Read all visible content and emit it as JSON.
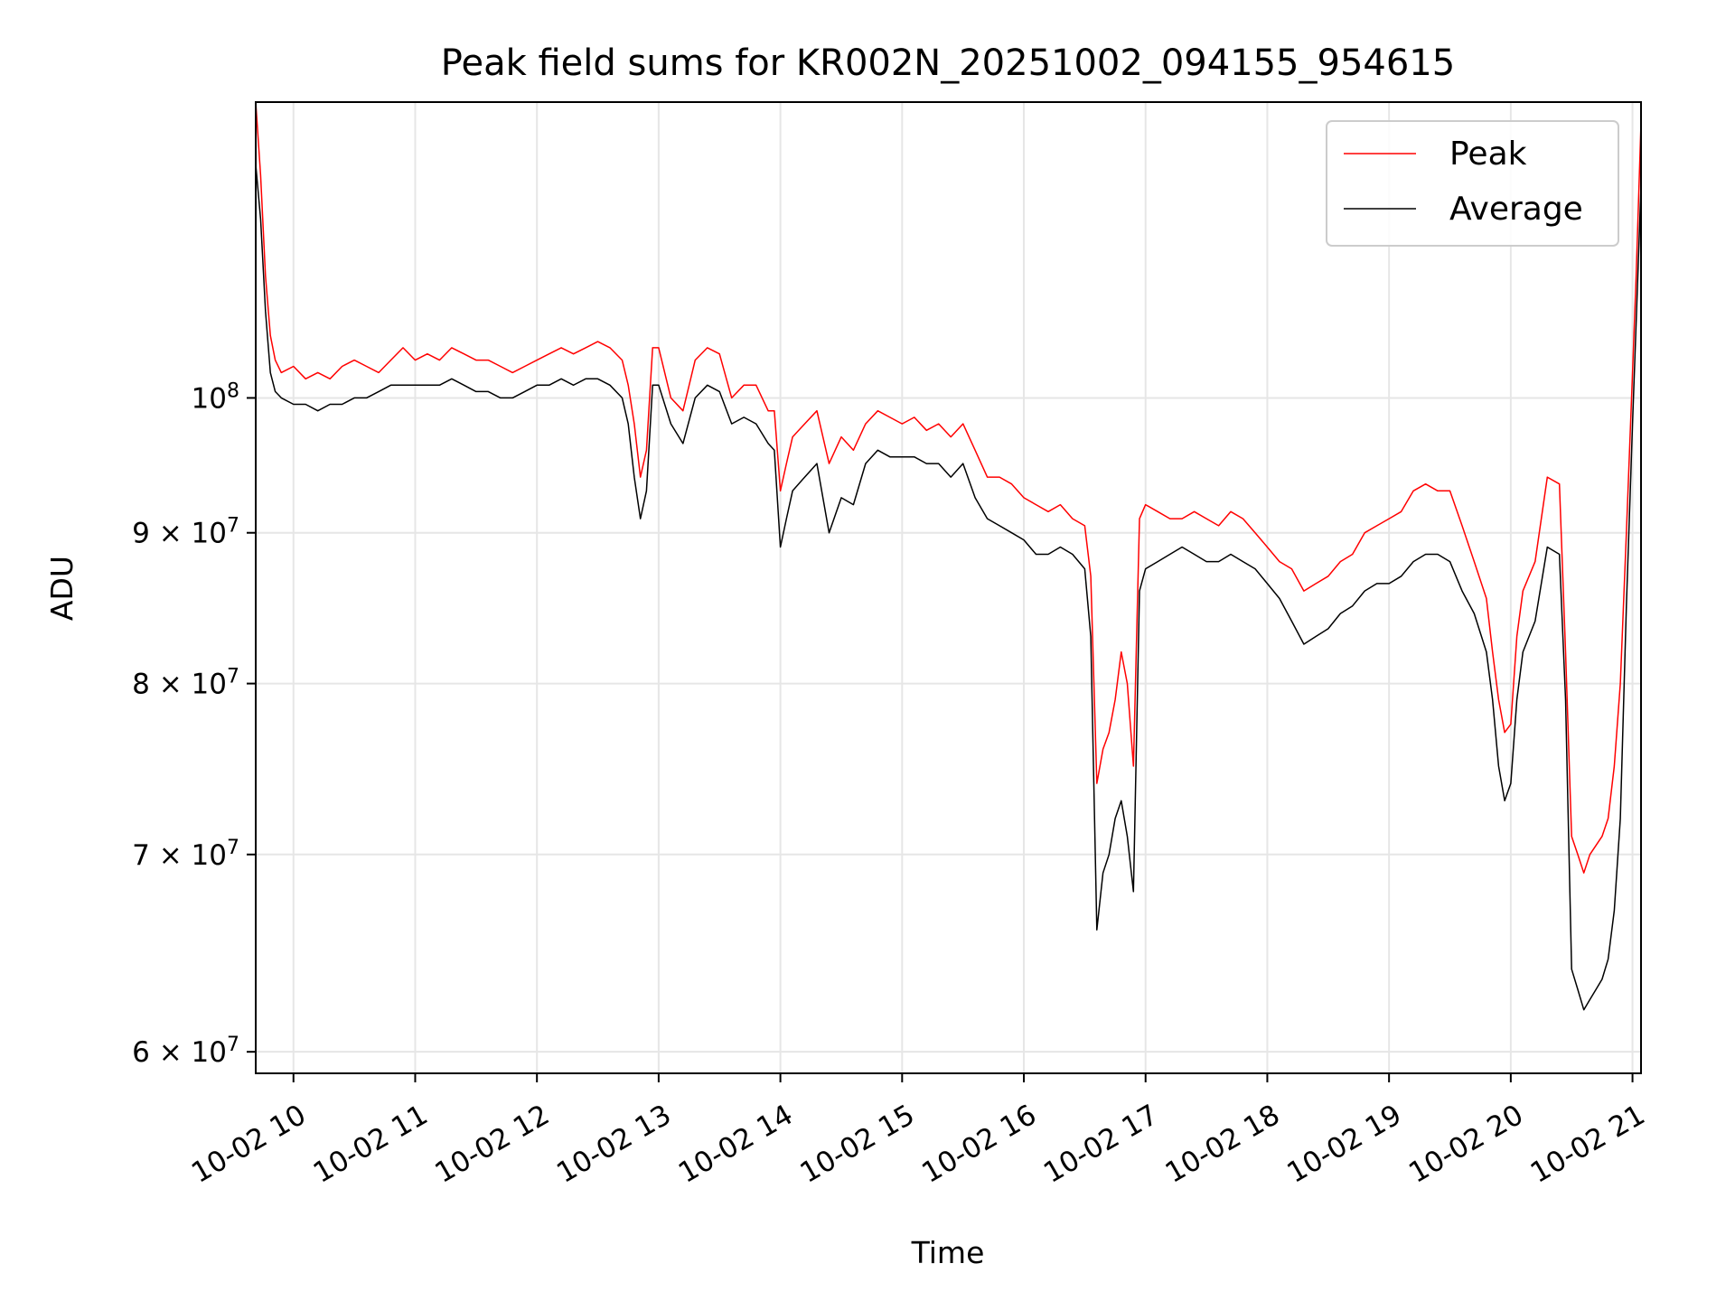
{
  "chart_data": {
    "type": "line",
    "title": "Peak field sums for KR002N_20251002_094155_954615",
    "xlabel": "Time",
    "ylabel": "ADU",
    "yscale": "log",
    "ylim": [
      59000000,
      126000000
    ],
    "x_range_hours": [
      9.69,
      21.07
    ],
    "grid": true,
    "legend_position": "top-right",
    "colors": {
      "Peak": "#ff0000",
      "Average": "#000000",
      "grid": "#e6e6e6"
    },
    "x_ticks": [
      {
        "hour": 10,
        "label": "10-02 10"
      },
      {
        "hour": 11,
        "label": "10-02 11"
      },
      {
        "hour": 12,
        "label": "10-02 12"
      },
      {
        "hour": 13,
        "label": "10-02 13"
      },
      {
        "hour": 14,
        "label": "10-02 14"
      },
      {
        "hour": 15,
        "label": "10-02 15"
      },
      {
        "hour": 16,
        "label": "10-02 16"
      },
      {
        "hour": 17,
        "label": "10-02 17"
      },
      {
        "hour": 18,
        "label": "10-02 18"
      },
      {
        "hour": 19,
        "label": "10-02 19"
      },
      {
        "hour": 20,
        "label": "10-02 20"
      },
      {
        "hour": 21,
        "label": "10-02 21"
      }
    ],
    "y_ticks": [
      {
        "value": 60000000,
        "mant": "6",
        "exp": "7"
      },
      {
        "value": 70000000,
        "mant": "7",
        "exp": "7"
      },
      {
        "value": 80000000,
        "mant": "8",
        "exp": "7"
      },
      {
        "value": 90000000,
        "mant": "9",
        "exp": "7"
      },
      {
        "value": 100000000,
        "mant": "",
        "exp": "8"
      }
    ],
    "series": [
      {
        "name": "Peak",
        "x_hours": [
          9.69,
          9.73,
          9.77,
          9.81,
          9.85,
          9.9,
          10.0,
          10.1,
          10.2,
          10.3,
          10.4,
          10.5,
          10.6,
          10.7,
          10.8,
          10.9,
          11.0,
          11.1,
          11.2,
          11.3,
          11.4,
          11.5,
          11.6,
          11.7,
          11.8,
          11.9,
          12.0,
          12.1,
          12.2,
          12.3,
          12.4,
          12.5,
          12.6,
          12.7,
          12.75,
          12.8,
          12.85,
          12.9,
          12.95,
          13.0,
          13.1,
          13.2,
          13.3,
          13.4,
          13.5,
          13.6,
          13.7,
          13.8,
          13.9,
          13.95,
          14.0,
          14.05,
          14.1,
          14.2,
          14.3,
          14.4,
          14.5,
          14.6,
          14.7,
          14.8,
          14.9,
          15.0,
          15.1,
          15.2,
          15.3,
          15.4,
          15.5,
          15.6,
          15.7,
          15.8,
          15.9,
          16.0,
          16.1,
          16.2,
          16.3,
          16.4,
          16.5,
          16.55,
          16.6,
          16.65,
          16.7,
          16.75,
          16.8,
          16.85,
          16.9,
          16.95,
          17.0,
          17.1,
          17.2,
          17.3,
          17.4,
          17.5,
          17.6,
          17.7,
          17.8,
          17.9,
          18.0,
          18.1,
          18.2,
          18.3,
          18.4,
          18.5,
          18.6,
          18.7,
          18.8,
          18.9,
          19.0,
          19.1,
          19.2,
          19.3,
          19.4,
          19.5,
          19.6,
          19.7,
          19.8,
          19.85,
          19.9,
          19.95,
          20.0,
          20.05,
          20.1,
          20.2,
          20.3,
          20.4,
          20.45,
          20.5,
          20.55,
          20.6,
          20.65,
          20.7,
          20.75,
          20.8,
          20.85,
          20.9,
          20.95,
          21.0,
          21.03,
          21.07
        ],
        "values": [
          126000000,
          119000000,
          110000000,
          105000000,
          103000000,
          102000000,
          102500000,
          101500000,
          102000000,
          101500000,
          102500000,
          103000000,
          102500000,
          102000000,
          103000000,
          104000000,
          103000000,
          103500000,
          103000000,
          104000000,
          103500000,
          103000000,
          103000000,
          102500000,
          102000000,
          102500000,
          103000000,
          103500000,
          104000000,
          103500000,
          104000000,
          104500000,
          104000000,
          103000000,
          101000000,
          98000000,
          94000000,
          96000000,
          104000000,
          104000000,
          100000000,
          99000000,
          103000000,
          104000000,
          103500000,
          100000000,
          101000000,
          101000000,
          99000000,
          99000000,
          93000000,
          95000000,
          97000000,
          98000000,
          99000000,
          95000000,
          97000000,
          96000000,
          98000000,
          99000000,
          98500000,
          98000000,
          98500000,
          97500000,
          98000000,
          97000000,
          98000000,
          96000000,
          94000000,
          94000000,
          93500000,
          92500000,
          92000000,
          91500000,
          92000000,
          91000000,
          90500000,
          87000000,
          74000000,
          76000000,
          77000000,
          79000000,
          82000000,
          80000000,
          75000000,
          91000000,
          92000000,
          91500000,
          91000000,
          91000000,
          91500000,
          91000000,
          90500000,
          91500000,
          91000000,
          90000000,
          89000000,
          88000000,
          87500000,
          86000000,
          86500000,
          87000000,
          88000000,
          88500000,
          90000000,
          90500000,
          91000000,
          91500000,
          93000000,
          93500000,
          93000000,
          93000000,
          90500000,
          88000000,
          85500000,
          82000000,
          79000000,
          77000000,
          77500000,
          83000000,
          86000000,
          88000000,
          94000000,
          93500000,
          82000000,
          71000000,
          70000000,
          69000000,
          70000000,
          70500000,
          71000000,
          72000000,
          75000000,
          80000000,
          90000000,
          102000000,
          110000000,
          124000000
        ]
      },
      {
        "name": "Average",
        "x_hours": [
          9.69,
          9.73,
          9.77,
          9.81,
          9.85,
          9.9,
          10.0,
          10.1,
          10.2,
          10.3,
          10.4,
          10.5,
          10.6,
          10.7,
          10.8,
          10.9,
          11.0,
          11.1,
          11.2,
          11.3,
          11.4,
          11.5,
          11.6,
          11.7,
          11.8,
          11.9,
          12.0,
          12.1,
          12.2,
          12.3,
          12.4,
          12.5,
          12.6,
          12.7,
          12.75,
          12.8,
          12.85,
          12.9,
          12.95,
          13.0,
          13.1,
          13.2,
          13.3,
          13.4,
          13.5,
          13.6,
          13.7,
          13.8,
          13.9,
          13.95,
          14.0,
          14.05,
          14.1,
          14.2,
          14.3,
          14.4,
          14.5,
          14.6,
          14.7,
          14.8,
          14.9,
          15.0,
          15.1,
          15.2,
          15.3,
          15.4,
          15.5,
          15.6,
          15.7,
          15.8,
          15.9,
          16.0,
          16.1,
          16.2,
          16.3,
          16.4,
          16.5,
          16.55,
          16.6,
          16.65,
          16.7,
          16.75,
          16.8,
          16.85,
          16.9,
          16.95,
          17.0,
          17.1,
          17.2,
          17.3,
          17.4,
          17.5,
          17.6,
          17.7,
          17.8,
          17.9,
          18.0,
          18.1,
          18.2,
          18.3,
          18.4,
          18.5,
          18.6,
          18.7,
          18.8,
          18.9,
          19.0,
          19.1,
          19.2,
          19.3,
          19.4,
          19.5,
          19.6,
          19.7,
          19.8,
          19.85,
          19.9,
          19.95,
          20.0,
          20.05,
          20.1,
          20.2,
          20.3,
          20.4,
          20.45,
          20.5,
          20.55,
          20.6,
          20.65,
          20.7,
          20.75,
          20.8,
          20.85,
          20.9,
          20.95,
          21.0,
          21.03,
          21.07
        ],
        "values": [
          120000000,
          115000000,
          107000000,
          102000000,
          100500000,
          100000000,
          99500000,
          99500000,
          99000000,
          99500000,
          99500000,
          100000000,
          100000000,
          100500000,
          101000000,
          101000000,
          101000000,
          101000000,
          101000000,
          101500000,
          101000000,
          100500000,
          100500000,
          100000000,
          100000000,
          100500000,
          101000000,
          101000000,
          101500000,
          101000000,
          101500000,
          101500000,
          101000000,
          100000000,
          98000000,
          94000000,
          91000000,
          93000000,
          101000000,
          101000000,
          98000000,
          96500000,
          100000000,
          101000000,
          100500000,
          98000000,
          98500000,
          98000000,
          96500000,
          96000000,
          89000000,
          91000000,
          93000000,
          94000000,
          95000000,
          90000000,
          92500000,
          92000000,
          95000000,
          96000000,
          95500000,
          95500000,
          95500000,
          95000000,
          95000000,
          94000000,
          95000000,
          92500000,
          91000000,
          90500000,
          90000000,
          89500000,
          88500000,
          88500000,
          89000000,
          88500000,
          87500000,
          83000000,
          66000000,
          69000000,
          70000000,
          72000000,
          73000000,
          71000000,
          68000000,
          86000000,
          87500000,
          88000000,
          88500000,
          89000000,
          88500000,
          88000000,
          88000000,
          88500000,
          88000000,
          87500000,
          86500000,
          85500000,
          84000000,
          82500000,
          83000000,
          83500000,
          84500000,
          85000000,
          86000000,
          86500000,
          86500000,
          87000000,
          88000000,
          88500000,
          88500000,
          88000000,
          86000000,
          84500000,
          82000000,
          79000000,
          75000000,
          73000000,
          74000000,
          79000000,
          82000000,
          84000000,
          89000000,
          88500000,
          79000000,
          64000000,
          63000000,
          62000000,
          62500000,
          63000000,
          63500000,
          64500000,
          67000000,
          72000000,
          85000000,
          98000000,
          106000000,
          118000000
        ]
      }
    ]
  }
}
